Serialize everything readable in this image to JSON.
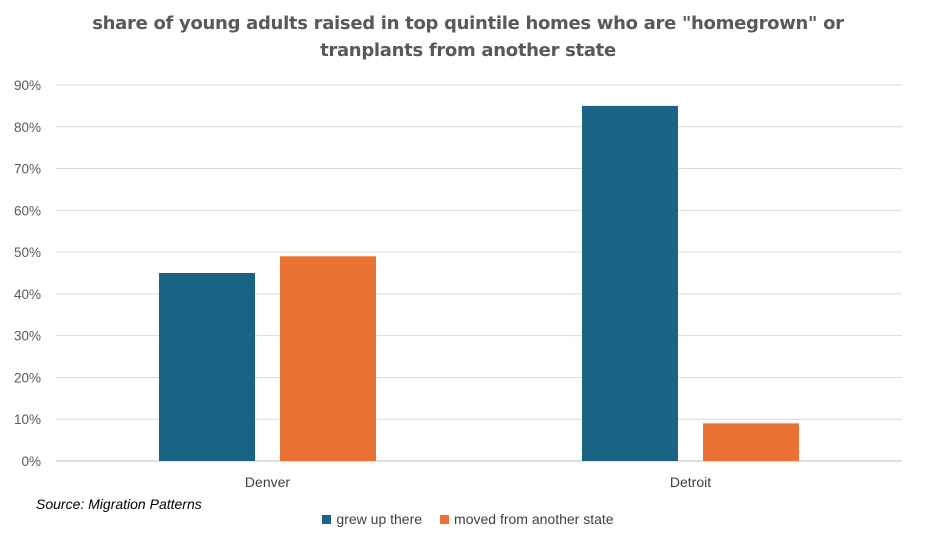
{
  "chart_data": {
    "type": "bar",
    "title": "share of young adults raised in top quintile homes who are \"homegrown\" or tranplants from another state",
    "categories": [
      "Denver",
      "Detroit"
    ],
    "series": [
      {
        "name": "grew up there",
        "values": [
          45,
          85
        ],
        "color": "#1a6384"
      },
      {
        "name": "moved from another state",
        "values": [
          49,
          9
        ],
        "color": "#e97132"
      }
    ],
    "y_ticks": [
      "0%",
      "10%",
      "20%",
      "30%",
      "40%",
      "50%",
      "60%",
      "70%",
      "80%",
      "90%"
    ],
    "ylim": [
      0,
      90
    ],
    "y_unit": "%",
    "grid": true,
    "legend_position": "bottom",
    "source": "Source: Migration Patterns"
  }
}
